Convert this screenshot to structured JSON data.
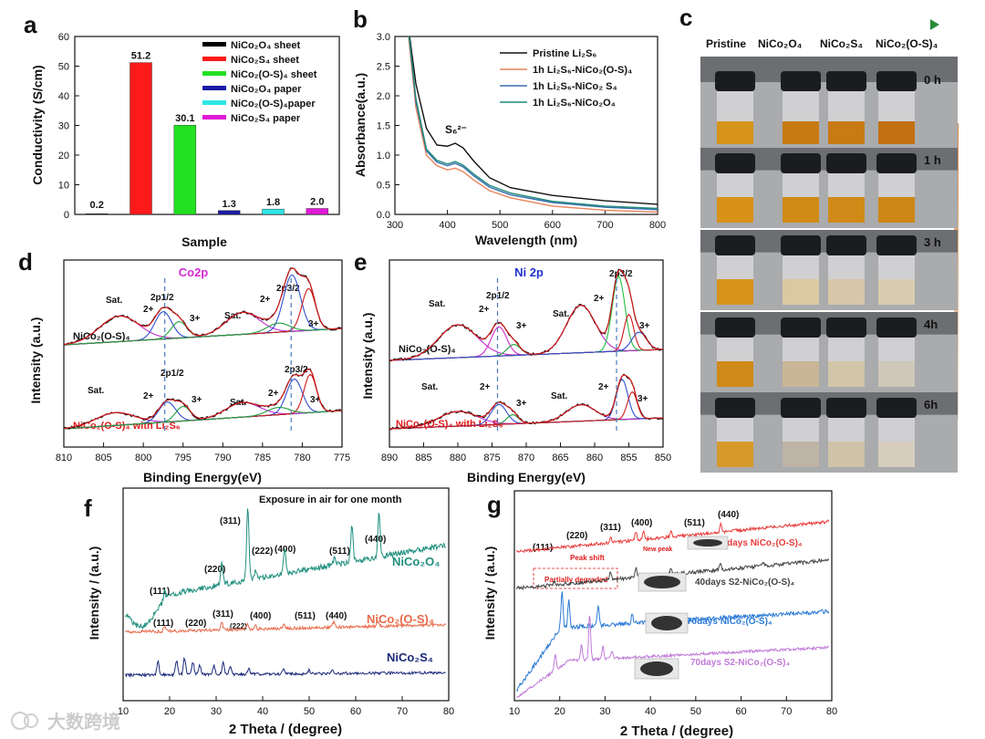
{
  "panels": {
    "a": "a",
    "b": "b",
    "c": "c",
    "d": "d",
    "e": "e",
    "f": "f",
    "g": "g"
  },
  "watermark": "大数跨境",
  "chart_data": [
    {
      "id": "a",
      "type": "bar",
      "xlabel": "Sample",
      "ylabel": "Conductivity (S/cm)",
      "ylim": [
        0,
        60
      ],
      "yticks": [
        "0",
        "10",
        "20",
        "30",
        "40",
        "50",
        "60"
      ],
      "categories": [
        "NiCo₂O₄ sheet",
        "NiCo₂S₄ sheet",
        "NiCo₂(O-S)₄ sheet",
        "NiCo₂O₄ paper",
        "NiCo₂(O-S)₄paper",
        "NiCo₂S₄ paper"
      ],
      "values": [
        0.2,
        51.2,
        30.1,
        1.3,
        1.8,
        2.0
      ],
      "value_labels": [
        "0.2",
        "51.2",
        "30.1",
        "1.3",
        "1.8",
        "2.0"
      ],
      "colors": [
        "#000000",
        "#ff1a1a",
        "#22e022",
        "#1a1aa6",
        "#2ee6e6",
        "#e01ad6"
      ],
      "legend": [
        "NiCo₂O₄ sheet",
        "NiCo₂S₄ sheet",
        "NiCo₂(O-S)₄ sheet",
        "NiCo₂O₄ paper",
        "NiCo₂(O-S)₄paper",
        "NiCo₂S₄ paper"
      ],
      "legend_position": "top-right"
    },
    {
      "id": "b",
      "type": "line",
      "xlabel": "Wavelength (nm)",
      "ylabel": "Absorbance(a.u.)",
      "xlim": [
        300,
        800
      ],
      "ylim": [
        0,
        3.0
      ],
      "xticks": [
        "300",
        "400",
        "500",
        "600",
        "700",
        "800"
      ],
      "yticks": [
        "0.0",
        "0.5",
        "1.0",
        "1.5",
        "2.0",
        "2.5",
        "3.0"
      ],
      "annotation": "S₆²⁻",
      "legend_position": "top-right",
      "series": [
        {
          "name": "Pristine Li₂S₆",
          "color": "#111111",
          "x": [
            328,
            340,
            360,
            380,
            400,
            415,
            430,
            450,
            480,
            520,
            600,
            700,
            800
          ],
          "y": [
            3.0,
            2.2,
            1.45,
            1.17,
            1.15,
            1.2,
            1.12,
            0.9,
            0.62,
            0.45,
            0.32,
            0.23,
            0.17
          ]
        },
        {
          "name": "1h Li₂S₆-NiCo₂(O-S)₄",
          "color": "#e8845a",
          "x": [
            326,
            340,
            360,
            380,
            400,
            415,
            430,
            450,
            480,
            520,
            600,
            700,
            800
          ],
          "y": [
            3.0,
            1.8,
            1.0,
            0.82,
            0.75,
            0.78,
            0.72,
            0.58,
            0.4,
            0.28,
            0.14,
            0.07,
            0.04
          ]
        },
        {
          "name": "1h Li₂S₆-NiCo₂ S₄",
          "color": "#3b6fb0",
          "x": [
            327,
            340,
            360,
            380,
            400,
            415,
            430,
            450,
            480,
            520,
            600,
            700,
            800
          ],
          "y": [
            3.0,
            1.9,
            1.07,
            0.88,
            0.82,
            0.86,
            0.8,
            0.65,
            0.46,
            0.33,
            0.2,
            0.12,
            0.08
          ]
        },
        {
          "name": "1h Li₂S₆-NiCo₂O₄",
          "color": "#1f8a7a",
          "x": [
            327,
            340,
            360,
            380,
            400,
            415,
            430,
            450,
            480,
            520,
            600,
            700,
            800
          ],
          "y": [
            3.0,
            1.95,
            1.1,
            0.91,
            0.85,
            0.89,
            0.83,
            0.68,
            0.49,
            0.36,
            0.22,
            0.14,
            0.1
          ]
        }
      ]
    },
    {
      "id": "d",
      "type": "line",
      "xlabel": "Binding Energy(eV)",
      "ylabel": "Intensity (a.u.)",
      "xlim": [
        810,
        775
      ],
      "xticks": [
        "810",
        "805",
        "800",
        "795",
        "790",
        "785",
        "780",
        "775"
      ],
      "title": "Co2p",
      "sample_top": "NiCo₂(O-S)₄",
      "sample_bottom": "NiCo₂(O-S)₄ with Li₂S₆",
      "peak_labels": [
        "Sat.",
        "2+",
        "2p1/2",
        "3+",
        "Sat.",
        "2+",
        "2p3/2",
        "3+"
      ]
    },
    {
      "id": "e",
      "type": "line",
      "xlabel": "Binding Energy(eV)",
      "ylabel": "Intensity (a.u.)",
      "xlim": [
        890,
        850
      ],
      "xticks": [
        "890",
        "885",
        "880",
        "875",
        "870",
        "865",
        "860",
        "855",
        "850"
      ],
      "title": "Ni 2p",
      "sample_top": "NiCo₂(O-S)₄",
      "sample_bottom": "NiCo₂(O-S)₄ with Li₂S₆",
      "peak_labels": [
        "Sat.",
        "2+",
        "2p1/2",
        "3+",
        "Sat.",
        "2+",
        "2p3/2",
        "3+"
      ]
    },
    {
      "id": "f",
      "type": "line",
      "xlabel": "2 Theta / (degree)",
      "ylabel": "Intensity / (a.u.)",
      "xlim": [
        10,
        80
      ],
      "xticks": [
        "10",
        "20",
        "30",
        "40",
        "50",
        "60",
        "70",
        "80"
      ],
      "title": "Exposure in air for one month",
      "planes_top": [
        "(111)",
        "(220)",
        "(311)",
        "(222)",
        "(400)",
        "(511)",
        "(440)"
      ],
      "planes_mid": [
        "(111)",
        "(220)",
        "(311)",
        "(222)",
        "(400)",
        "(511)",
        "(440)"
      ],
      "series": [
        {
          "name": "NiCo₂O₄",
          "color": "#1f8f7e"
        },
        {
          "name": "NiCo₂(O-S)₄",
          "color": "#e86a4a"
        },
        {
          "name": "NiCo₂S₄",
          "color": "#1c2a7a"
        }
      ]
    },
    {
      "id": "g",
      "type": "line",
      "xlabel": "2 Theta / (degree)",
      "ylabel": "Intensity / (a.u.)",
      "xlim": [
        10,
        80
      ],
      "xticks": [
        "10",
        "20",
        "30",
        "40",
        "50",
        "60",
        "70",
        "80"
      ],
      "planes": [
        "(111)",
        "(220)",
        "(311)",
        "(400)",
        "(511)",
        "(440)"
      ],
      "notes": [
        "Peak shift",
        "New peak",
        "Partially degraded"
      ],
      "series": [
        {
          "name": "40days NiCo₂(O-S)₄",
          "color": "#e83a3a"
        },
        {
          "name": "40days   S2-NiCo₂(O-S)₄",
          "color": "#444444"
        },
        {
          "name": "70days NiCo₂(O-S)₄",
          "color": "#2a7ad6"
        },
        {
          "name": "70days   S2-NiCo₂(O-S)₄",
          "color": "#c07ad8"
        }
      ]
    }
  ],
  "panel_c": {
    "column_labels": [
      "Pristine",
      "NiCo₂O₄",
      "NiCo₂S₄",
      "NiCo₂(O-S)₄"
    ],
    "time_labels": [
      "0 h",
      "1 h",
      "3 h",
      "4h",
      "6h"
    ]
  }
}
